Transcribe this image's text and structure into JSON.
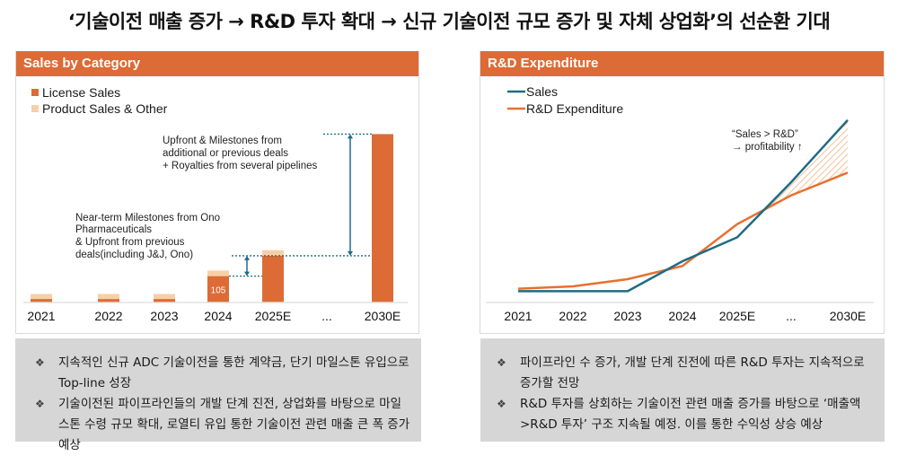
{
  "page": {
    "title": "‘기술이전 매출 증가 → R&D 투자 확대 → 신규 기술이전 규모 증가 및 자체 상업화’의 선순환 기대"
  },
  "colors": {
    "accent": "#dd6b36",
    "license": "#dd6b36",
    "product": "#f8cfa7",
    "sales_line": "#1f6b85",
    "rd_line": "#e8702f",
    "arrow": "#1f6b85",
    "notes_bg": "#d6d6d6"
  },
  "left_panel": {
    "header": "Sales by Category",
    "annotation_upper": [
      "Upfront & Milestones from",
      "additional or previous deals",
      "+ Royalties from several pipelines"
    ],
    "annotation_lower": [
      "Near-term Milestones from Ono",
      "Pharmaceuticals",
      "& Upfront from previous",
      "deals(including J&J, Ono)"
    ],
    "notes": [
      "지속적인 신규 ADC 기술이전을 통한 계약금, 단기 마일스톤 유입으로 Top-line 성장",
      "기술이전된 파이프라인들의 개발 단계 진전, 상업화를 바탕으로 마일스톤 수령 규모 확대, 로열티 유입 통한 기술이전 관련 매출 큰 폭 증가 예상"
    ],
    "bullet_glyph": "❖"
  },
  "right_panel": {
    "header": "R&D Expenditure",
    "annotation": [
      "“Sales > R&D”",
      "→ profitability ↑"
    ],
    "notes": [
      "파이프라인 수 증가, 개발 단계 진전에 따른 R&D 투자는 지속적으로 증가할 전망",
      "R&D 투자를 상회하는 기술이전 관련 매출 증가를 바탕으로 ‘매출액>R&D 투자’ 구조 지속될 예정. 이를 통한 수익성 상승 예상"
    ],
    "bullet_glyph": "❖"
  },
  "chart_data": [
    {
      "type": "bar",
      "stacked": true,
      "title": "Sales by Category",
      "categories": [
        "2021",
        "2022",
        "2023",
        "2024",
        "2025E",
        "...",
        "2030E"
      ],
      "series": [
        {
          "name": "License Sales",
          "values": [
            14,
            14,
            14,
            105,
            186,
            null,
            670
          ]
        },
        {
          "name": "Product Sales & Other",
          "values": [
            20,
            20,
            20,
            22,
            22,
            null,
            0
          ]
        }
      ],
      "data_labels": [
        {
          "category": "2024",
          "series": "License Sales",
          "text": "105"
        }
      ],
      "xlabel": "",
      "ylabel": "",
      "ylim": [
        0,
        700
      ],
      "grid": false,
      "legend": "top-left"
    },
    {
      "type": "line",
      "title": "R&D Expenditure",
      "categories": [
        "2021",
        "2022",
        "2023",
        "2024",
        "2025E",
        "...",
        "2030E"
      ],
      "series": [
        {
          "name": "Sales",
          "values": [
            2,
            2,
            2,
            27,
            47,
            93,
            145
          ],
          "x_positions": [
            0,
            1,
            2,
            3,
            4,
            5,
            6
          ]
        },
        {
          "name": "R&D Expenditure",
          "values": [
            4,
            6,
            12,
            23,
            58,
            82,
            101
          ]
        }
      ],
      "annotation": "“Sales > R&D” → profitability ↑",
      "xlabel": "",
      "ylabel": "",
      "ylim": [
        0,
        150
      ],
      "grid": false,
      "legend": "top-left"
    }
  ]
}
